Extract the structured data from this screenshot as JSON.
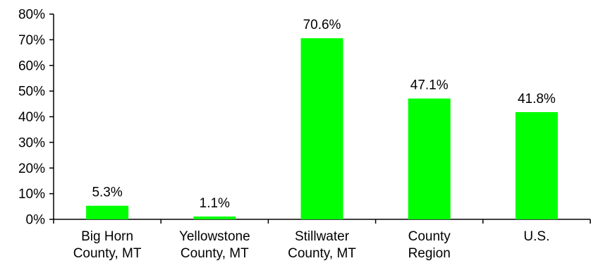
{
  "chart_data": {
    "type": "bar",
    "title": "",
    "xlabel": "",
    "ylabel": "",
    "categories": [
      [
        "Big Horn",
        "County, MT"
      ],
      [
        "Yellowstone",
        "County, MT"
      ],
      [
        "Stillwater",
        "County, MT"
      ],
      [
        "County",
        "Region"
      ],
      [
        "U.S."
      ]
    ],
    "values": [
      5.3,
      1.1,
      70.6,
      47.1,
      41.8
    ],
    "data_labels": [
      "5.3%",
      "1.1%",
      "70.6%",
      "47.1%",
      "41.8%"
    ],
    "ylim": [
      0,
      80
    ],
    "yticks": [
      0,
      10,
      20,
      30,
      40,
      50,
      60,
      70,
      80
    ],
    "ytick_labels": [
      "0%",
      "10%",
      "20%",
      "30%",
      "40%",
      "50%",
      "60%",
      "70%",
      "80%"
    ],
    "grid": false,
    "legend": "none",
    "colors": {
      "bar": "#00ff00",
      "axis": "#000000"
    }
  }
}
